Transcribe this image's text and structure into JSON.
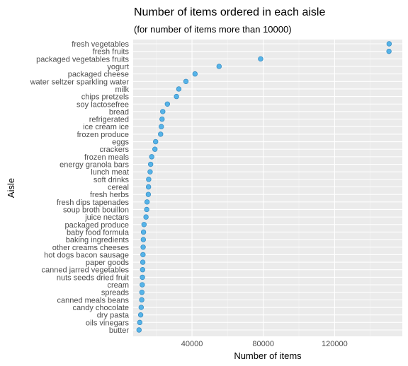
{
  "chart_data": {
    "type": "scatter",
    "title": "Number of items ordered in each aisle",
    "subtitle": "(for number of items more than 10000)",
    "xlabel": "Number of items",
    "ylabel": "Aisle",
    "xlim": [
      7000,
      158000
    ],
    "xticks": [
      40000,
      80000,
      120000
    ],
    "xtick_labels": [
      "40000",
      "80000",
      "120000"
    ],
    "grid": true,
    "legend": "none",
    "point_color": "#56B4E9",
    "point_edge_color": "#3a8fc5",
    "panel_color": "#EBEBEB",
    "categories": [
      "fresh vegetables",
      "fresh fruits",
      "packaged vegetables fruits",
      "yogurt",
      "packaged cheese",
      "water seltzer sparkling water",
      "milk",
      "chips pretzels",
      "soy lactosefree",
      "bread",
      "refrigerated",
      "ice cream ice",
      "frozen produce",
      "eggs",
      "crackers",
      "frozen meals",
      "energy granola bars",
      "lunch meat",
      "soft drinks",
      "cereal",
      "fresh herbs",
      "fresh dips tapenades",
      "soup broth bouillon",
      "juice nectars",
      "packaged produce",
      "baby food formula",
      "baking ingredients",
      "other creams cheeses",
      "hot dogs bacon sausage",
      "paper goods",
      "canned jarred vegetables",
      "nuts seeds dried fruit",
      "cream",
      "spreads",
      "canned meals beans",
      "candy chocolate",
      "dry pasta",
      "oils vinegars",
      "butter"
    ],
    "values": [
      150600,
      150500,
      78500,
      55200,
      41700,
      36600,
      32600,
      31300,
      26200,
      23600,
      23200,
      22800,
      22400,
      19600,
      19200,
      17400,
      16800,
      16500,
      15700,
      15600,
      15500,
      14800,
      14600,
      14200,
      13100,
      12800,
      12700,
      12600,
      12500,
      12400,
      12300,
      12200,
      12100,
      11900,
      11800,
      11500,
      11200,
      10700,
      10300
    ]
  }
}
